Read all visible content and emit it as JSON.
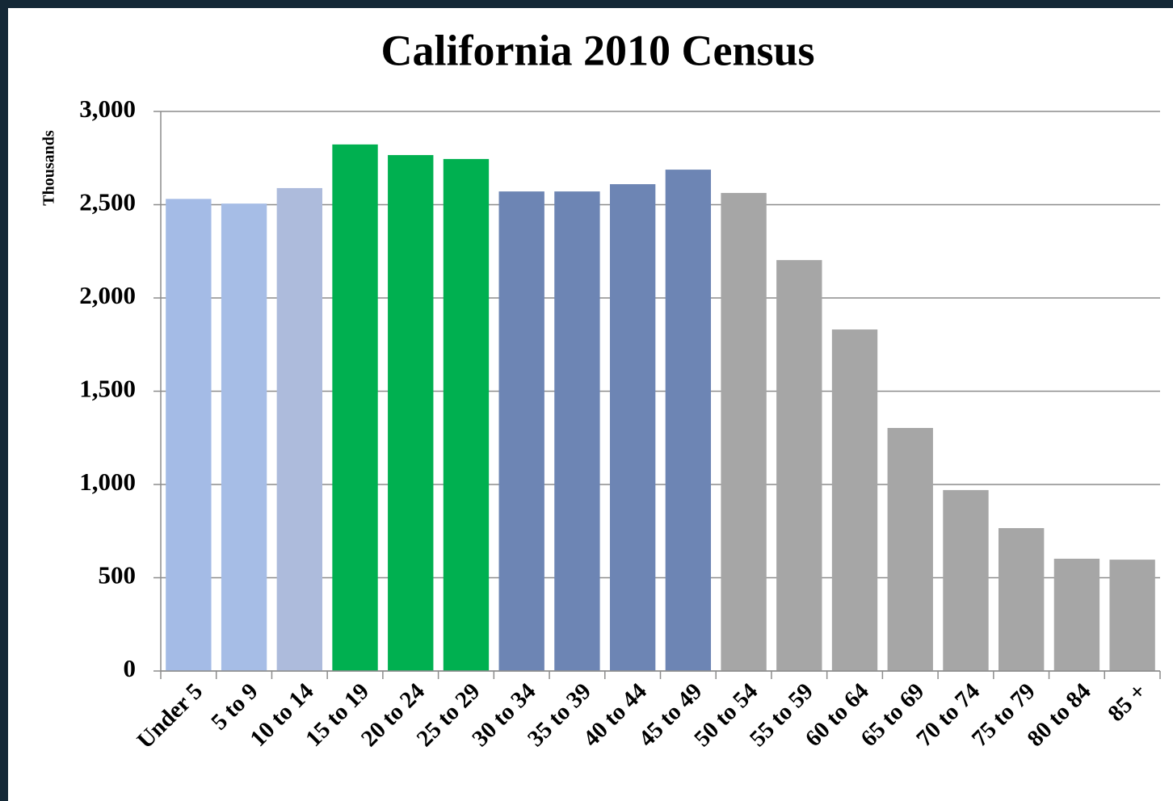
{
  "chart_data": {
    "type": "bar",
    "title": "California 2010 Census",
    "y_label": "Thousands",
    "categories": [
      "Under 5",
      "5 to 9",
      "10 to 14",
      "15 to 19",
      "20 to 24",
      "25 to 29",
      "30 to 34",
      "35 to 39",
      "40 to 44",
      "45 to 49",
      "50 to 54",
      "55 to 59",
      "60 to 64",
      "65 to 69",
      "70 to 74",
      "75 to 79",
      "80 to 84",
      "85 +"
    ],
    "values": [
      2531,
      2506,
      2589,
      2823,
      2766,
      2745,
      2571,
      2571,
      2610,
      2688,
      2563,
      2203,
      1831,
      1303,
      970,
      766,
      602,
      597
    ],
    "colors": [
      "#a4bbe6",
      "#a6bde6",
      "#adbbdc",
      "#00b050",
      "#00b050",
      "#00b050",
      "#6d85b4",
      "#6d85b4",
      "#6d85b4",
      "#6d85b4",
      "#a6a6a6",
      "#a6a6a6",
      "#a6a6a6",
      "#a6a6a6",
      "#a6a6a6",
      "#a6a6a6",
      "#a6a6a6",
      "#a6a6a6"
    ],
    "ylim": [
      0,
      3000
    ],
    "yticks": [
      0,
      {
        "value": 500,
        "label": "500"
      },
      {
        "value": 1000,
        "label": "1,000"
      },
      {
        "value": 1500,
        "label": "1,500"
      },
      {
        "value": 2000,
        "label": "2,000"
      },
      {
        "value": 2500,
        "label": "2,500"
      },
      {
        "value": 3000,
        "label": "3,000"
      }
    ],
    "grid": true
  }
}
